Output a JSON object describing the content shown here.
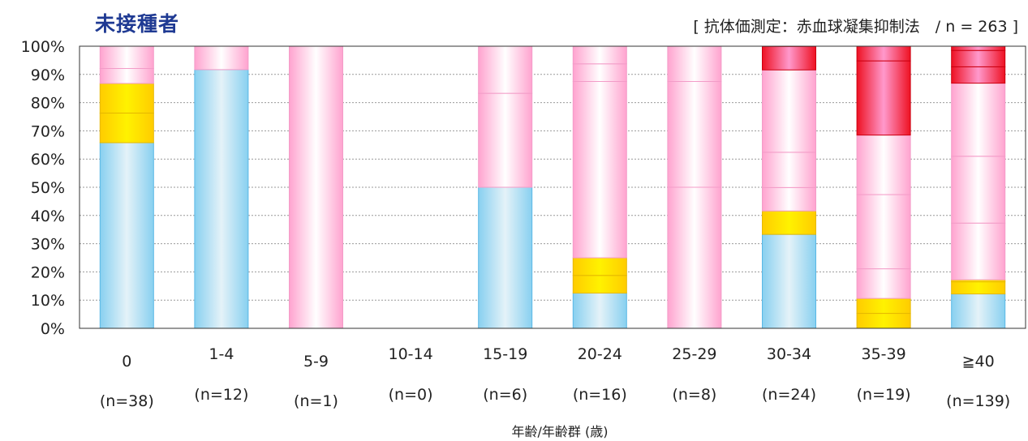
{
  "header": {
    "title": "未接種者",
    "subtitle": "[ 抗体価測定：赤血球凝集抑制法　/ n = 263 ]"
  },
  "chart_data": {
    "type": "bar",
    "stacked": true,
    "title": "未接種者",
    "subtitle": "[ 抗体価測定：赤血球凝集抑制法　/ n = 263 ]",
    "xlabel": "年齢/年齢群 (歳)",
    "ylabel": "",
    "ylim": [
      0,
      100
    ],
    "yticks": [
      "0%",
      "10%",
      "20%",
      "30%",
      "40%",
      "50%",
      "60%",
      "70%",
      "80%",
      "90%",
      "100%"
    ],
    "grid": true,
    "categories": [
      "0",
      "1-4",
      "5-9",
      "10-14",
      "15-19",
      "20-24",
      "25-29",
      "30-34",
      "35-39",
      "≧40"
    ],
    "counts": [
      "(n=38)",
      "(n=12)",
      "(n=1)",
      "(n=0)",
      "(n=6)",
      "(n=16)",
      "(n=8)",
      "(n=24)",
      "(n=19)",
      "(n=139)"
    ],
    "colors": {
      "blue": "#8fd0ee",
      "yellow": "#ffd700",
      "pink": "#ffa3cf",
      "red": "#ee2233"
    },
    "bars": [
      [
        {
          "c": "blue",
          "v": 65.8
        },
        {
          "c": "yellow",
          "v": 10.5
        },
        {
          "c": "yellow",
          "v": 10.5
        },
        {
          "c": "pink",
          "v": 5.3
        },
        {
          "c": "pink",
          "v": 7.9
        }
      ],
      [
        {
          "c": "blue",
          "v": 91.7
        },
        {
          "c": "pink",
          "v": 8.3
        }
      ],
      [
        {
          "c": "pink",
          "v": 100
        }
      ],
      [],
      [
        {
          "c": "blue",
          "v": 50.0
        },
        {
          "c": "pink",
          "v": 33.3
        },
        {
          "c": "pink",
          "v": 16.7
        }
      ],
      [
        {
          "c": "blue",
          "v": 12.5
        },
        {
          "c": "yellow",
          "v": 6.25
        },
        {
          "c": "yellow",
          "v": 6.25
        },
        {
          "c": "pink",
          "v": 62.5
        },
        {
          "c": "pink",
          "v": 6.25
        },
        {
          "c": "pink",
          "v": 6.25
        }
      ],
      [
        {
          "c": "pink",
          "v": 50.0
        },
        {
          "c": "pink",
          "v": 37.5
        },
        {
          "c": "pink",
          "v": 12.5
        }
      ],
      [
        {
          "c": "blue",
          "v": 33.3
        },
        {
          "c": "yellow",
          "v": 8.3
        },
        {
          "c": "pink",
          "v": 8.3
        },
        {
          "c": "pink",
          "v": 12.5
        },
        {
          "c": "pink",
          "v": 29.2
        },
        {
          "c": "red",
          "v": 8.3
        }
      ],
      [
        {
          "c": "yellow",
          "v": 5.3
        },
        {
          "c": "yellow",
          "v": 5.3
        },
        {
          "c": "pink",
          "v": 10.5
        },
        {
          "c": "pink",
          "v": 26.3
        },
        {
          "c": "pink",
          "v": 21.1
        },
        {
          "c": "red",
          "v": 26.3
        },
        {
          "c": "red",
          "v": 5.3
        }
      ],
      [
        {
          "c": "blue",
          "v": 12.2
        },
        {
          "c": "yellow",
          "v": 4.3
        },
        {
          "c": "yellow",
          "v": 0.7
        },
        {
          "c": "pink",
          "v": 20.1
        },
        {
          "c": "pink",
          "v": 23.7
        },
        {
          "c": "pink",
          "v": 25.9
        },
        {
          "c": "red",
          "v": 5.8
        },
        {
          "c": "red",
          "v": 5.8
        },
        {
          "c": "red",
          "v": 1.5
        }
      ]
    ]
  }
}
